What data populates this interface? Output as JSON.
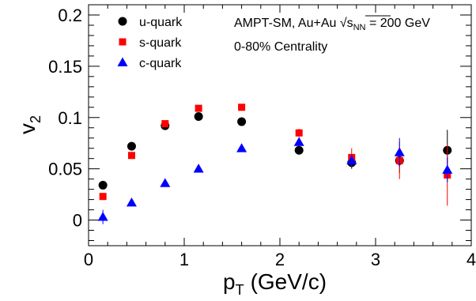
{
  "chart_data": {
    "type": "scatter",
    "xlabel_main": "p",
    "xlabel_sub": "T",
    "xlabel_unit": "(GeV/c)",
    "ylabel_main": "v",
    "ylabel_sub": "2",
    "xlim": [
      0,
      4
    ],
    "ylim": [
      -0.025,
      0.21
    ],
    "xticks": [
      0,
      1,
      2,
      3,
      4
    ],
    "xtick_labels": [
      "0",
      "1",
      "2",
      "3",
      "4"
    ],
    "yticks": [
      0,
      0.05,
      0.1,
      0.15,
      0.2
    ],
    "ytick_labels": [
      "0",
      "0.05",
      "0.1",
      "0.15",
      "0.2"
    ],
    "grid": false,
    "legend_position": "top-left",
    "annotations": {
      "line1_prefix": "AMPT-SM, Au+Au ",
      "sqrt_symbol": "√",
      "s_letter": "s",
      "s_subscript": "NN",
      "line1_suffix": " = 200 GeV",
      "line2": "0-80% Centrality"
    },
    "series": [
      {
        "name": "u-quark",
        "marker": "circle",
        "color": "#000000",
        "points": [
          {
            "x": 0.15,
            "y": 0.034,
            "err": 0.002
          },
          {
            "x": 0.45,
            "y": 0.072,
            "err": 0.002
          },
          {
            "x": 0.8,
            "y": 0.092,
            "err": 0.002
          },
          {
            "x": 1.15,
            "y": 0.101,
            "err": 0.002
          },
          {
            "x": 1.6,
            "y": 0.096,
            "err": 0.002
          },
          {
            "x": 2.2,
            "y": 0.068,
            "err": 0.003
          },
          {
            "x": 2.75,
            "y": 0.056,
            "err": 0.006
          },
          {
            "x": 3.25,
            "y": 0.058,
            "err": 0.012
          },
          {
            "x": 3.75,
            "y": 0.068,
            "err": 0.02
          }
        ]
      },
      {
        "name": "s-quark",
        "marker": "square",
        "color": "#ff0000",
        "points": [
          {
            "x": 0.15,
            "y": 0.023,
            "err": 0.002
          },
          {
            "x": 0.45,
            "y": 0.063,
            "err": 0.002
          },
          {
            "x": 0.8,
            "y": 0.094,
            "err": 0.002
          },
          {
            "x": 1.15,
            "y": 0.109,
            "err": 0.002
          },
          {
            "x": 1.6,
            "y": 0.11,
            "err": 0.002
          },
          {
            "x": 2.2,
            "y": 0.085,
            "err": 0.004
          },
          {
            "x": 2.75,
            "y": 0.061,
            "err": 0.009
          },
          {
            "x": 3.25,
            "y": 0.058,
            "err": 0.018
          },
          {
            "x": 3.75,
            "y": 0.044,
            "err": 0.03
          }
        ]
      },
      {
        "name": "c-quark",
        "marker": "triangle",
        "color": "#0000ff",
        "points": [
          {
            "x": 0.15,
            "y": 0.003,
            "err": 0.007
          },
          {
            "x": 0.45,
            "y": 0.017,
            "err": 0.002
          },
          {
            "x": 0.8,
            "y": 0.036,
            "err": 0.002
          },
          {
            "x": 1.15,
            "y": 0.05,
            "err": 0.002
          },
          {
            "x": 1.6,
            "y": 0.07,
            "err": 0.002
          },
          {
            "x": 2.2,
            "y": 0.076,
            "err": 0.004
          },
          {
            "x": 2.75,
            "y": 0.058,
            "err": 0.006
          },
          {
            "x": 3.25,
            "y": 0.066,
            "err": 0.014
          },
          {
            "x": 3.75,
            "y": 0.049,
            "err": 0.012
          }
        ]
      }
    ]
  }
}
